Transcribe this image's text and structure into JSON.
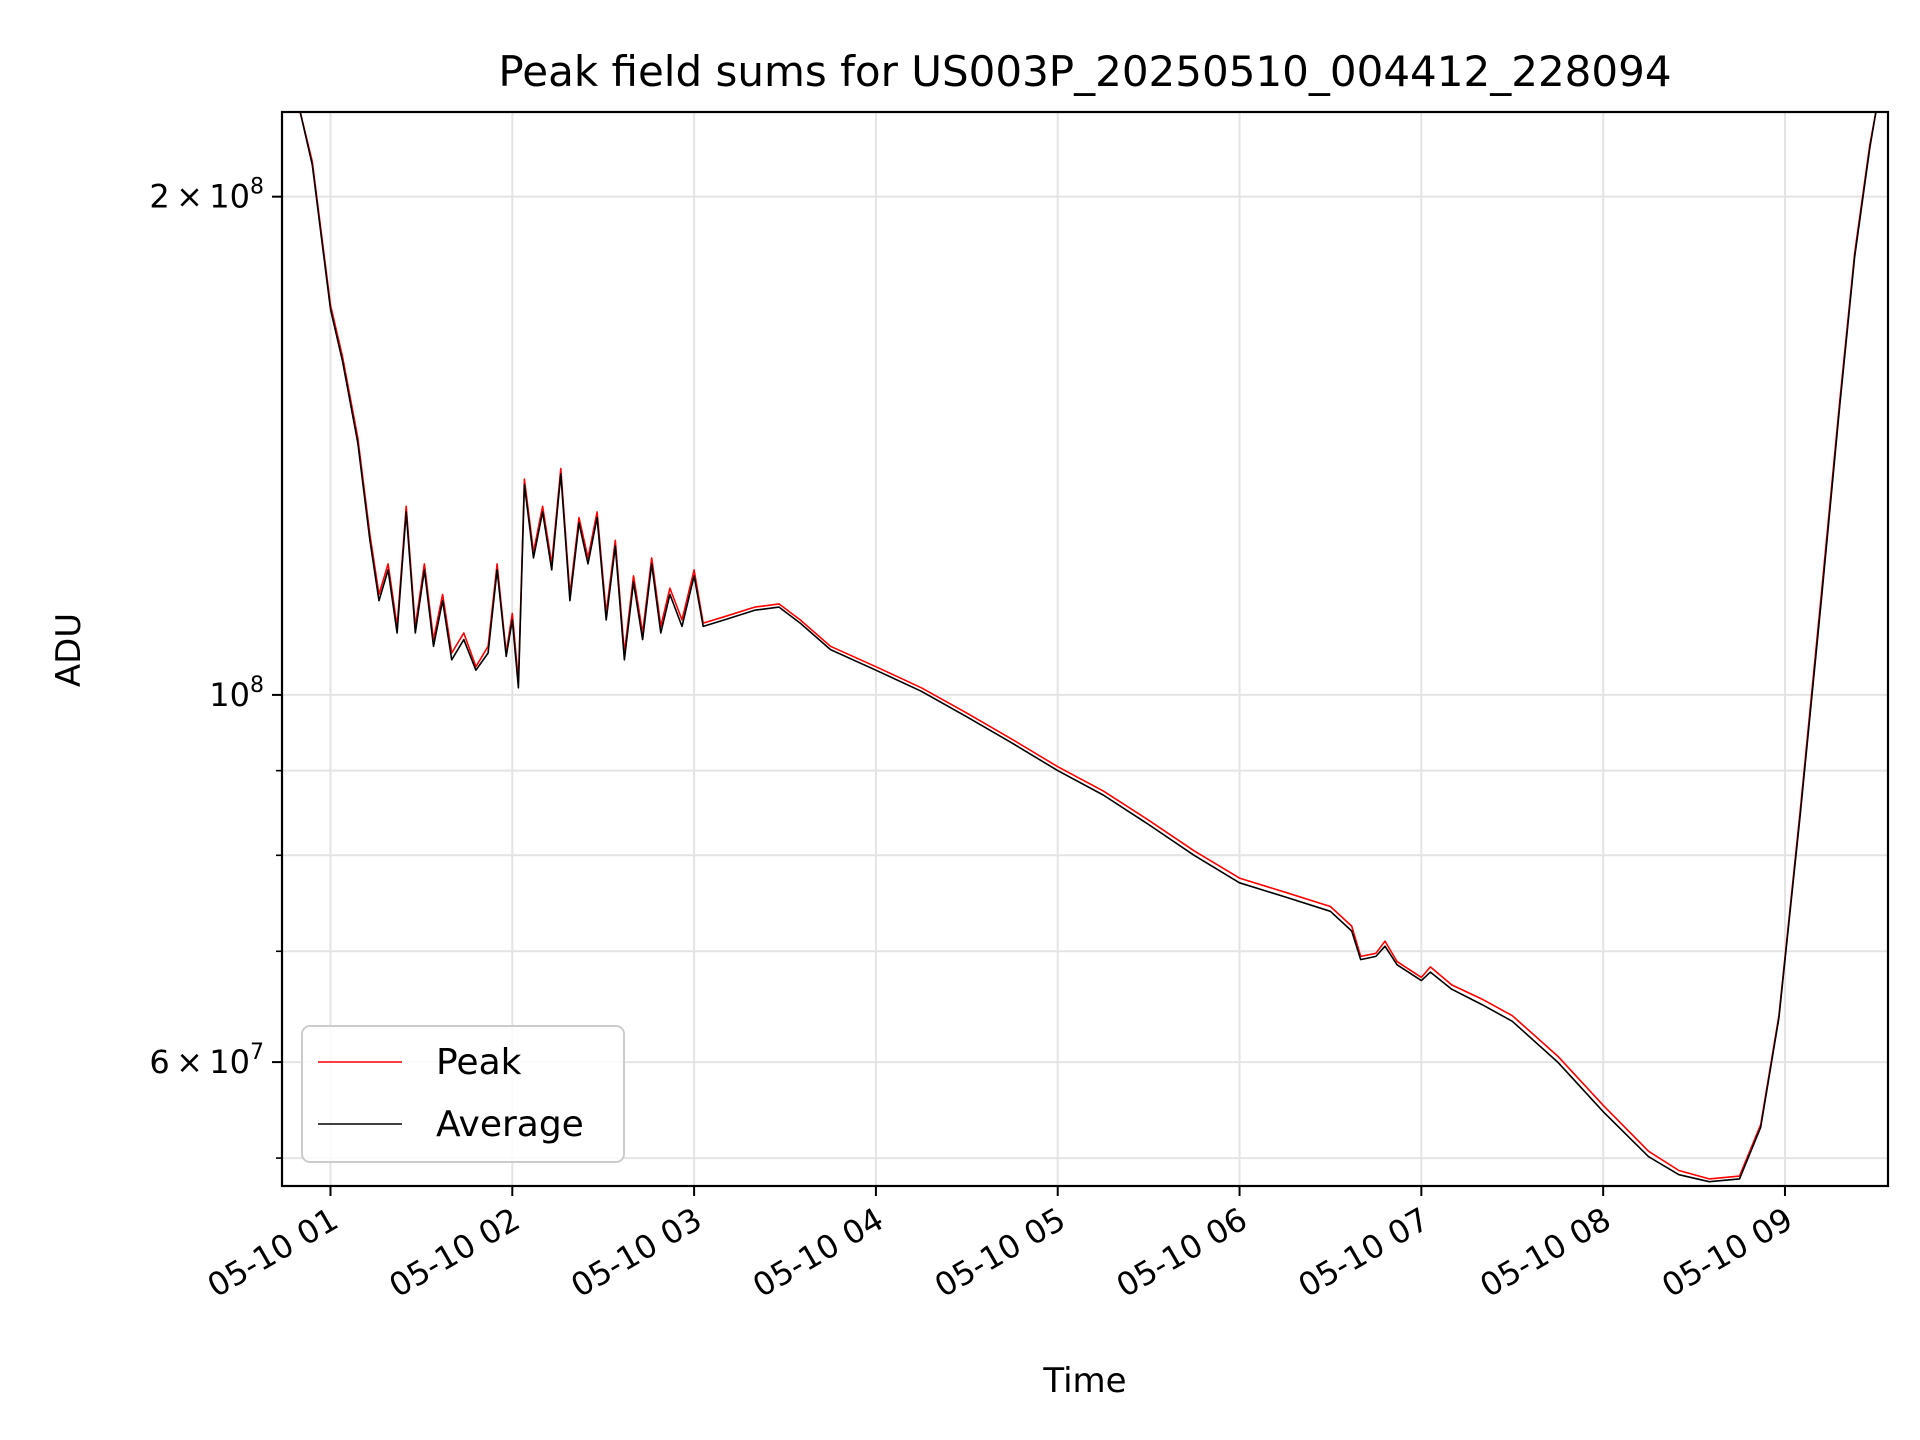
{
  "chart_data": {
    "type": "line",
    "title": "Peak field sums for US003P_20250510_004412_228094",
    "xlabel": "Time",
    "ylabel": "ADU",
    "x_ticks": [
      "05-10 01",
      "05-10 02",
      "05-10 03",
      "05-10 04",
      "05-10 05",
      "05-10 06",
      "05-10 07",
      "05-10 08",
      "05-10 09"
    ],
    "x_range": [
      "2025-05-10 00:44",
      "2025-05-10 09:34"
    ],
    "y_scale": "log",
    "y_range": [
      50500000,
      225000000
    ],
    "y_major_ticks": [
      {
        "value": 60000000,
        "mantissa": "6",
        "times": "×",
        "base": "10",
        "exp": "7"
      },
      {
        "value": 100000000,
        "mantissa": "",
        "times": "",
        "base": "10",
        "exp": "8"
      },
      {
        "value": 200000000,
        "mantissa": "2",
        "times": "×",
        "base": "10",
        "exp": "8"
      }
    ],
    "y_minor_ticks": [
      52500000,
      70000000,
      80000000,
      90000000
    ],
    "grid": true,
    "legend_position": "lower-left",
    "series": [
      {
        "name": "Peak",
        "color": "#ff0000",
        "points": [
          [
            "00:44",
            225000000
          ],
          [
            "00:50",
            225000000
          ],
          [
            "00:54",
            210000000
          ],
          [
            "00:57",
            190000000
          ],
          [
            "01:00",
            172000000
          ],
          [
            "01:04",
            160000000
          ],
          [
            "01:09",
            143000000
          ],
          [
            "01:13",
            125000000
          ],
          [
            "01:16",
            115000000
          ],
          [
            "01:19",
            120000000
          ],
          [
            "01:22",
            110000000
          ],
          [
            "01:25",
            130000000
          ],
          [
            "01:28",
            110000000
          ],
          [
            "01:31",
            120000000
          ],
          [
            "01:34",
            108000000
          ],
          [
            "01:37",
            115000000
          ],
          [
            "01:40",
            106000000
          ],
          [
            "01:44",
            109000000
          ],
          [
            "01:48",
            104000000
          ],
          [
            "01:52",
            107000000
          ],
          [
            "01:55",
            120000000
          ],
          [
            "01:58",
            106000000
          ],
          [
            "02:00",
            112000000
          ],
          [
            "02:02",
            102000000
          ],
          [
            "02:04",
            135000000
          ],
          [
            "02:07",
            122000000
          ],
          [
            "02:10",
            130000000
          ],
          [
            "02:13",
            120000000
          ],
          [
            "02:16",
            137000000
          ],
          [
            "02:19",
            115000000
          ],
          [
            "02:22",
            128000000
          ],
          [
            "02:25",
            121000000
          ],
          [
            "02:28",
            129000000
          ],
          [
            "02:31",
            112000000
          ],
          [
            "02:34",
            124000000
          ],
          [
            "02:37",
            106000000
          ],
          [
            "02:40",
            118000000
          ],
          [
            "02:43",
            109000000
          ],
          [
            "02:46",
            121000000
          ],
          [
            "02:49",
            110000000
          ],
          [
            "02:52",
            116000000
          ],
          [
            "02:56",
            111000000
          ],
          [
            "03:00",
            119000000
          ],
          [
            "03:03",
            110500000
          ],
          [
            "03:10",
            111500000
          ],
          [
            "03:20",
            113000000
          ],
          [
            "03:28",
            113500000
          ],
          [
            "03:35",
            111000000
          ],
          [
            "03:45",
            107000000
          ],
          [
            "04:00",
            104000000
          ],
          [
            "04:15",
            101000000
          ],
          [
            "04:30",
            97500000
          ],
          [
            "04:45",
            94000000
          ],
          [
            "05:00",
            90500000
          ],
          [
            "05:15",
            87500000
          ],
          [
            "05:30",
            84000000
          ],
          [
            "05:45",
            80500000
          ],
          [
            "06:00",
            77500000
          ],
          [
            "06:15",
            76000000
          ],
          [
            "06:30",
            74500000
          ],
          [
            "06:37",
            72500000
          ],
          [
            "06:40",
            69500000
          ],
          [
            "06:45",
            69800000
          ],
          [
            "06:48",
            71000000
          ],
          [
            "06:52",
            69000000
          ],
          [
            "07:00",
            67500000
          ],
          [
            "07:03",
            68500000
          ],
          [
            "07:10",
            66800000
          ],
          [
            "07:20",
            65500000
          ],
          [
            "07:30",
            64000000
          ],
          [
            "07:45",
            60500000
          ],
          [
            "08:00",
            56500000
          ],
          [
            "08:15",
            53000000
          ],
          [
            "08:25",
            51600000
          ],
          [
            "08:35",
            51000000
          ],
          [
            "08:45",
            51200000
          ],
          [
            "08:52",
            55000000
          ],
          [
            "08:58",
            64000000
          ],
          [
            "09:05",
            85000000
          ],
          [
            "09:12",
            115000000
          ],
          [
            "09:18",
            150000000
          ],
          [
            "09:23",
            185000000
          ],
          [
            "09:28",
            215000000
          ],
          [
            "09:30",
            225000000
          ],
          [
            "09:34",
            225000000
          ]
        ]
      },
      {
        "name": "Average",
        "color": "#000000",
        "points": [
          [
            "00:44",
            225000000
          ],
          [
            "00:50",
            225000000
          ],
          [
            "00:54",
            209000000
          ],
          [
            "00:57",
            189000000
          ],
          [
            "01:00",
            171000000
          ],
          [
            "01:04",
            159000000
          ],
          [
            "01:09",
            142000000
          ],
          [
            "01:13",
            124000000
          ],
          [
            "01:16",
            114000000
          ],
          [
            "01:19",
            119000000
          ],
          [
            "01:22",
            109000000
          ],
          [
            "01:25",
            129000000
          ],
          [
            "01:28",
            109000000
          ],
          [
            "01:31",
            119000000
          ],
          [
            "01:34",
            107000000
          ],
          [
            "01:37",
            114000000
          ],
          [
            "01:40",
            105000000
          ],
          [
            "01:44",
            108000000
          ],
          [
            "01:48",
            103500000
          ],
          [
            "01:52",
            106000000
          ],
          [
            "01:55",
            119000000
          ],
          [
            "01:58",
            105500000
          ],
          [
            "02:00",
            111000000
          ],
          [
            "02:02",
            101000000
          ],
          [
            "02:04",
            134000000
          ],
          [
            "02:07",
            121000000
          ],
          [
            "02:10",
            129000000
          ],
          [
            "02:13",
            119000000
          ],
          [
            "02:16",
            136000000
          ],
          [
            "02:19",
            114000000
          ],
          [
            "02:22",
            127000000
          ],
          [
            "02:25",
            120000000
          ],
          [
            "02:28",
            128000000
          ],
          [
            "02:31",
            111000000
          ],
          [
            "02:34",
            123000000
          ],
          [
            "02:37",
            105000000
          ],
          [
            "02:40",
            117000000
          ],
          [
            "02:43",
            108000000
          ],
          [
            "02:46",
            120000000
          ],
          [
            "02:49",
            109000000
          ],
          [
            "02:52",
            115000000
          ],
          [
            "02:56",
            110000000
          ],
          [
            "03:00",
            118000000
          ],
          [
            "03:03",
            110000000
          ],
          [
            "03:10",
            111000000
          ],
          [
            "03:20",
            112500000
          ],
          [
            "03:28",
            113000000
          ],
          [
            "03:35",
            110500000
          ],
          [
            "03:45",
            106500000
          ],
          [
            "04:00",
            103500000
          ],
          [
            "04:15",
            100500000
          ],
          [
            "04:30",
            97000000
          ],
          [
            "04:45",
            93500000
          ],
          [
            "05:00",
            90000000
          ],
          [
            "05:15",
            87000000
          ],
          [
            "05:30",
            83500000
          ],
          [
            "05:45",
            80000000
          ],
          [
            "06:00",
            77000000
          ],
          [
            "06:15",
            75500000
          ],
          [
            "06:30",
            74000000
          ],
          [
            "06:37",
            72000000
          ],
          [
            "06:40",
            69200000
          ],
          [
            "06:45",
            69500000
          ],
          [
            "06:48",
            70500000
          ],
          [
            "06:52",
            68700000
          ],
          [
            "07:00",
            67200000
          ],
          [
            "07:03",
            68000000
          ],
          [
            "07:10",
            66400000
          ],
          [
            "07:20",
            65000000
          ],
          [
            "07:30",
            63500000
          ],
          [
            "07:45",
            60000000
          ],
          [
            "08:00",
            56000000
          ],
          [
            "08:15",
            52600000
          ],
          [
            "08:25",
            51300000
          ],
          [
            "08:35",
            50800000
          ],
          [
            "08:45",
            51000000
          ],
          [
            "08:52",
            54800000
          ],
          [
            "08:58",
            63800000
          ],
          [
            "09:05",
            84500000
          ],
          [
            "09:12",
            114000000
          ],
          [
            "09:18",
            149000000
          ],
          [
            "09:23",
            184000000
          ],
          [
            "09:28",
            214000000
          ],
          [
            "09:30",
            225000000
          ],
          [
            "09:34",
            225000000
          ]
        ]
      }
    ]
  }
}
